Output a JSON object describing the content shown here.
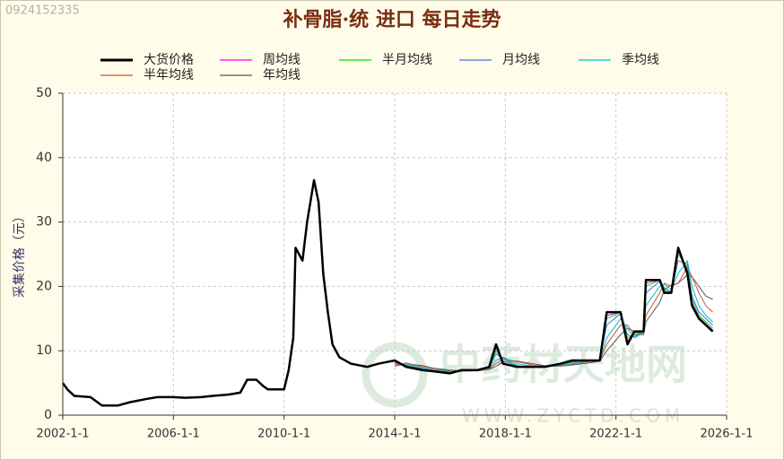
{
  "chart_data": {
    "type": "line",
    "id_stamp": "0924152335",
    "title": "补骨脂·统 进口 每日走势",
    "y_label": "采集价格（元）",
    "watermark": "中药材天地网",
    "watermark_url": "WWW.ZYCTD.COM",
    "xlim": [
      "2002-1-1",
      "2026-1-1"
    ],
    "xticks": [
      "2002-1-1",
      "2006-1-1",
      "2010-1-1",
      "2014-1-1",
      "2018-1-1",
      "2022-1-1",
      "2026-1-1"
    ],
    "ylim": [
      0,
      50
    ],
    "yticks": [
      0,
      10,
      20,
      30,
      40,
      50
    ],
    "grid": true,
    "x": [
      "2002-1-1",
      "2002-3-1",
      "2002-6-1",
      "2003-1-1",
      "2003-6-1",
      "2004-1-1",
      "2004-6-1",
      "2005-1-1",
      "2005-6-1",
      "2006-1-1",
      "2006-6-1",
      "2007-1-1",
      "2007-6-1",
      "2008-1-1",
      "2008-6-1",
      "2008-9-1",
      "2009-1-1",
      "2009-4-1",
      "2009-6-1",
      "2010-1-1",
      "2010-3-1",
      "2010-5-1",
      "2010-6-1",
      "2010-9-1",
      "2010-11-1",
      "2011-2-1",
      "2011-4-1",
      "2011-6-1",
      "2011-8-1",
      "2011-10-1",
      "2012-1-1",
      "2012-6-1",
      "2013-1-1",
      "2013-6-1",
      "2014-1-1",
      "2014-6-1",
      "2015-1-1",
      "2015-6-1",
      "2016-1-1",
      "2016-6-1",
      "2017-1-1",
      "2017-6-1",
      "2017-9-1",
      "2017-12-1",
      "2018-6-1",
      "2019-1-1",
      "2019-6-1",
      "2020-1-1",
      "2020-6-1",
      "2021-1-1",
      "2021-6-1",
      "2021-9-1",
      "2022-3-1",
      "2022-6-1",
      "2022-9-1",
      "2023-1-1",
      "2023-2-1",
      "2023-8-1",
      "2023-10-1",
      "2024-1-1",
      "2024-4-1",
      "2024-8-1",
      "2024-10-1",
      "2025-1-1",
      "2025-4-1",
      "2025-7-1"
    ],
    "series": [
      {
        "name": "大货价格",
        "color": "#000000",
        "width": 2.5,
        "values": [
          5,
          4,
          3,
          2.8,
          1.5,
          1.5,
          2,
          2.5,
          2.8,
          2.8,
          2.7,
          2.8,
          3,
          3.2,
          3.5,
          5.5,
          5.5,
          4.5,
          4,
          4,
          7,
          12,
          26,
          24,
          30,
          36.5,
          33,
          22,
          16,
          11,
          9,
          8,
          7.5,
          8,
          8.5,
          7.5,
          7,
          6.8,
          6.5,
          7,
          7,
          7.5,
          11,
          8,
          7.5,
          7.5,
          7.5,
          8,
          8.5,
          8.5,
          8.5,
          16,
          16,
          11,
          13,
          13,
          21,
          21,
          19,
          19,
          26,
          22,
          17,
          15,
          14,
          13
        ]
      },
      {
        "name": "周均线",
        "color": "#ff00ff",
        "width": 1,
        "values": [
          null,
          null,
          null,
          null,
          null,
          null,
          null,
          null,
          null,
          null,
          null,
          null,
          null,
          null,
          null,
          null,
          null,
          null,
          null,
          null,
          null,
          null,
          null,
          null,
          null,
          null,
          null,
          null,
          null,
          null,
          null,
          null,
          null,
          null,
          8.4,
          7.6,
          7,
          6.8,
          6.6,
          7,
          7,
          7.6,
          10.5,
          8.2,
          7.5,
          7.5,
          7.5,
          8,
          8.4,
          8.5,
          8.5,
          15.5,
          16,
          11.5,
          12.8,
          13,
          20.5,
          21,
          19.2,
          19,
          25.5,
          22.5,
          17.5,
          15.2,
          14.2,
          13.2
        ]
      },
      {
        "name": "半月均线",
        "color": "#00dd00",
        "width": 1,
        "values": [
          null,
          null,
          null,
          null,
          null,
          null,
          null,
          null,
          null,
          null,
          null,
          null,
          null,
          null,
          null,
          null,
          null,
          null,
          null,
          null,
          null,
          null,
          null,
          null,
          null,
          null,
          null,
          null,
          null,
          null,
          null,
          null,
          null,
          null,
          8.3,
          7.7,
          7.1,
          6.9,
          6.6,
          6.9,
          7,
          7.5,
          10,
          8.5,
          7.6,
          7.5,
          7.5,
          7.9,
          8.3,
          8.5,
          8.5,
          15,
          16,
          12,
          12.5,
          13,
          20,
          21,
          19.5,
          19,
          25,
          23,
          18,
          15.5,
          14.5,
          13.5
        ]
      },
      {
        "name": "月均线",
        "color": "#4a6ee0",
        "width": 1,
        "values": [
          null,
          null,
          null,
          null,
          null,
          null,
          null,
          null,
          null,
          null,
          null,
          null,
          null,
          null,
          null,
          null,
          null,
          null,
          null,
          null,
          null,
          null,
          null,
          null,
          null,
          null,
          null,
          null,
          null,
          null,
          null,
          null,
          null,
          null,
          8.2,
          7.8,
          7.2,
          6.9,
          6.7,
          6.9,
          7,
          7.4,
          9.5,
          8.8,
          7.7,
          7.5,
          7.5,
          7.8,
          8.2,
          8.5,
          8.5,
          14,
          15.8,
          12.5,
          12.2,
          13,
          19,
          20.8,
          19.8,
          19.1,
          24,
          23.5,
          18.5,
          16,
          15,
          14
        ]
      },
      {
        "name": "季均线",
        "color": "#00c0d0",
        "width": 1,
        "values": [
          null,
          null,
          null,
          null,
          null,
          null,
          null,
          null,
          null,
          null,
          null,
          null,
          null,
          null,
          null,
          null,
          null,
          null,
          null,
          null,
          null,
          null,
          null,
          null,
          null,
          null,
          null,
          null,
          null,
          null,
          null,
          null,
          null,
          null,
          8,
          8,
          7.3,
          7,
          6.8,
          6.8,
          7,
          7.3,
          8.5,
          9,
          8,
          7.6,
          7.5,
          7.7,
          8,
          8.4,
          8.5,
          12,
          15,
          13.5,
          12,
          12.8,
          17,
          20,
          20.3,
          19.5,
          22,
          24,
          20,
          17,
          15.5,
          14.5
        ]
      },
      {
        "name": "半年均线",
        "color": "#d2502a",
        "width": 1,
        "values": [
          null,
          null,
          null,
          null,
          null,
          null,
          null,
          null,
          null,
          null,
          null,
          null,
          null,
          null,
          null,
          null,
          null,
          null,
          null,
          null,
          null,
          null,
          null,
          null,
          null,
          null,
          null,
          null,
          null,
          null,
          null,
          null,
          null,
          null,
          7.8,
          8.1,
          7.5,
          7.1,
          6.9,
          6.8,
          6.9,
          7.2,
          8,
          8.8,
          8.3,
          7.8,
          7.6,
          7.6,
          7.9,
          8.3,
          8.5,
          11,
          14,
          14,
          12.5,
          12.5,
          15.5,
          19,
          20.5,
          20,
          20.5,
          23,
          21.5,
          19,
          17,
          16
        ]
      },
      {
        "name": "年均线",
        "color": "#555555",
        "width": 1,
        "values": [
          null,
          null,
          null,
          null,
          null,
          null,
          null,
          null,
          null,
          null,
          null,
          null,
          null,
          null,
          null,
          null,
          null,
          null,
          null,
          null,
          null,
          null,
          null,
          null,
          null,
          null,
          null,
          null,
          null,
          null,
          null,
          null,
          null,
          null,
          7.6,
          8,
          7.7,
          7.3,
          7,
          6.9,
          6.9,
          7.1,
          7.6,
          8.3,
          8.4,
          8,
          7.7,
          7.6,
          7.8,
          8.1,
          8.4,
          10,
          12.5,
          13.5,
          13,
          12.5,
          14.5,
          17.5,
          19.5,
          20.2,
          20.5,
          21.8,
          21.5,
          20,
          18.5,
          18
        ]
      }
    ]
  }
}
